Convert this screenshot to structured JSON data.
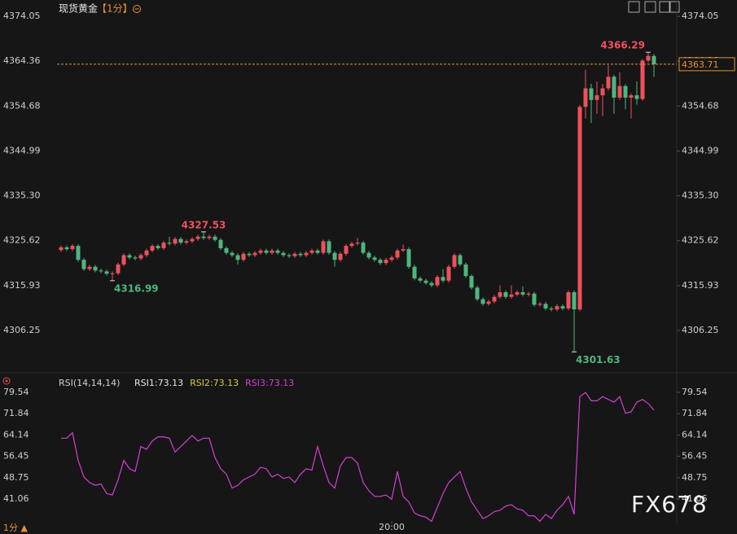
{
  "chart_data": [
    {
      "type": "candlestick",
      "title": "现货黄金",
      "subtitle": "【1分】",
      "up_color": "#f0505c",
      "down_color": "#4fb57f",
      "last_color": "#e8913a",
      "ylim": [
        4297.64,
        4376.16
      ],
      "yticks": [
        4374.05,
        4364.36,
        4354.68,
        4344.99,
        {
          "value": 4335.3,
          "label": "4335.30"
        },
        4325.62,
        4315.93,
        4306.25
      ],
      "grid": false,
      "open": [
        4323.6,
        4324.2,
        4323.8,
        4324.5,
        4321.5,
        4319.5,
        4320.0,
        4319.2,
        4319.0,
        4318.5,
        4318.6,
        4320.5,
        4322.5,
        4322.0,
        4321.8,
        4322.5,
        4323.5,
        4324.5,
        4324.0,
        4325.2,
        4325.0,
        4326.0,
        4325.2,
        4325.5,
        4326.0,
        4326.5,
        4326.2,
        4326.5,
        4325.8,
        4324.0,
        4323.0,
        4322.5,
        4321.5,
        4322.8,
        4322.5,
        4323.0,
        4323.5,
        4323.0,
        4323.5,
        4323.0,
        4322.5,
        4322.3,
        4322.8,
        4322.5,
        4323.0,
        4323.5,
        4323.0,
        4325.5,
        4323.0,
        4321.5,
        4322.8,
        4324.5,
        4325.0,
        4325.2,
        4323.0,
        4322.0,
        4321.5,
        4320.8,
        4321.5,
        4322.0,
        4323.5,
        4323.8,
        4320.0,
        4317.5,
        4317.0,
        4316.5,
        4316.0,
        4317.8,
        4317.0,
        4320.0,
        4322.5,
        4320.5,
        4318.0,
        4315.5,
        4313.0,
        4312.0,
        4312.5,
        4313.5,
        4314.5,
        4313.5,
        4314.0,
        4314.5,
        4314.0,
        4314.2,
        4311.8,
        4312.0,
        4311.0,
        4310.8,
        4311.5,
        4311.0,
        4314.5,
        4310.8,
        4354.5,
        4358.5,
        4356.0,
        4357.0,
        4358.5,
        4361.0,
        4356.5,
        4359.0,
        4356.5,
        4357.0,
        4356.2,
        4364.5,
        4365.5
      ],
      "high": [
        4324.6,
        4324.6,
        4324.9,
        4324.9,
        4321.9,
        4320.4,
        4320.4,
        4319.6,
        4319.4,
        4319.0,
        4320.9,
        4322.9,
        4322.9,
        4322.4,
        4322.9,
        4323.9,
        4324.9,
        4324.9,
        4325.6,
        4326.5,
        4326.4,
        4326.4,
        4325.9,
        4326.4,
        4326.9,
        4327.53,
        4326.9,
        4326.9,
        4326.2,
        4324.4,
        4323.4,
        4322.9,
        4323.2,
        4323.2,
        4323.4,
        4323.9,
        4323.9,
        4323.9,
        4323.9,
        4323.4,
        4322.9,
        4323.2,
        4323.2,
        4323.4,
        4323.9,
        4323.9,
        4325.9,
        4325.9,
        4323.4,
        4323.2,
        4324.9,
        4325.4,
        4326.2,
        4325.6,
        4323.4,
        4322.4,
        4321.9,
        4321.9,
        4322.4,
        4323.9,
        4324.8,
        4324.2,
        4320.4,
        4317.9,
        4317.4,
        4316.9,
        4318.2,
        4319.5,
        4320.4,
        4322.9,
        4322.9,
        4320.9,
        4318.4,
        4315.9,
        4313.4,
        4312.9,
        4313.9,
        4316.0,
        4314.9,
        4316.0,
        4314.9,
        4315.8,
        4314.6,
        4314.6,
        4312.4,
        4312.4,
        4311.4,
        4311.9,
        4311.9,
        4314.9,
        4314.9,
        4354.9,
        4362.5,
        4359.5,
        4360.0,
        4359.5,
        4363.5,
        4361.4,
        4362.0,
        4359.4,
        4357.4,
        4360.0,
        4364.9,
        4366.29,
        4365.9
      ],
      "low": [
        4323.2,
        4323.4,
        4323.4,
        4321.1,
        4319.1,
        4319.1,
        4318.8,
        4318.6,
        4318.1,
        4316.99,
        4318.2,
        4320.1,
        4321.6,
        4321.4,
        4321.4,
        4322.1,
        4323.1,
        4323.6,
        4323.6,
        4324.6,
        4324.6,
        4324.8,
        4324.8,
        4325.1,
        4325.6,
        4325.8,
        4325.8,
        4325.4,
        4323.6,
        4322.6,
        4322.1,
        4320.5,
        4321.1,
        4322.1,
        4322.1,
        4322.6,
        4322.6,
        4322.6,
        4322.6,
        4322.1,
        4321.9,
        4321.9,
        4322.1,
        4322.1,
        4322.6,
        4322.6,
        4322.6,
        4322.6,
        4320.0,
        4321.1,
        4322.4,
        4324.1,
        4324.6,
        4322.6,
        4321.6,
        4321.1,
        4320.4,
        4320.4,
        4321.1,
        4321.6,
        4323.1,
        4319.6,
        4317.1,
        4316.6,
        4316.1,
        4315.6,
        4315.6,
        4316.6,
        4316.6,
        4319.6,
        4320.1,
        4317.6,
        4315.1,
        4312.6,
        4311.6,
        4311.6,
        4312.1,
        4313.1,
        4313.1,
        4313.1,
        4313.6,
        4313.6,
        4313.6,
        4311.4,
        4311.4,
        4310.6,
        4310.4,
        4310.4,
        4310.6,
        4310.6,
        4301.63,
        4310.4,
        4352.0,
        4351.0,
        4353.0,
        4352.5,
        4358.0,
        4353.0,
        4356.0,
        4354.0,
        4352.0,
        4355.0,
        4355.8,
        4364.1,
        4361.0
      ],
      "close": [
        4324.2,
        4323.8,
        4324.5,
        4321.5,
        4319.5,
        4320.0,
        4319.2,
        4319.0,
        4318.5,
        4318.6,
        4320.5,
        4322.5,
        4322.0,
        4321.8,
        4322.5,
        4323.5,
        4324.5,
        4324.0,
        4325.2,
        4325.0,
        4326.0,
        4325.2,
        4325.5,
        4326.0,
        4326.5,
        4326.2,
        4326.5,
        4325.8,
        4324.0,
        4323.0,
        4322.5,
        4321.5,
        4322.8,
        4322.5,
        4323.0,
        4323.5,
        4323.0,
        4323.5,
        4323.0,
        4322.5,
        4322.3,
        4322.8,
        4322.5,
        4323.0,
        4323.5,
        4323.0,
        4325.5,
        4323.0,
        4321.5,
        4322.8,
        4324.5,
        4325.0,
        4325.2,
        4323.0,
        4322.0,
        4321.5,
        4320.8,
        4321.5,
        4322.0,
        4323.5,
        4323.8,
        4320.0,
        4317.5,
        4317.0,
        4316.5,
        4316.0,
        4317.8,
        4317.0,
        4320.0,
        4322.5,
        4320.5,
        4318.0,
        4315.5,
        4313.0,
        4312.0,
        4312.5,
        4313.5,
        4314.5,
        4313.5,
        4314.0,
        4314.5,
        4314.0,
        4314.2,
        4311.8,
        4312.0,
        4311.0,
        4310.8,
        4311.5,
        4311.0,
        4314.5,
        4310.8,
        4354.5,
        4358.5,
        4356.0,
        4357.0,
        4358.5,
        4361.0,
        4356.5,
        4359.0,
        4356.5,
        4357.0,
        4356.2,
        4364.5,
        4365.5,
        4363.71
      ]
    },
    {
      "type": "line",
      "title": "RSI(14,14,14)",
      "readouts": [
        {
          "text": "RSI1:73.13",
          "color": "#e6e6e6"
        },
        {
          "text": "RSI2:73.13",
          "color": "#d8cc3c"
        },
        {
          "text": "RSI3:73.13",
          "color": "#d43fd4"
        }
      ],
      "color": "#d43fd4",
      "ylim": [
        31.66,
        85.42
      ],
      "yticks": [
        79.54,
        71.84,
        64.14,
        56.45,
        48.75,
        41.06
      ],
      "xticks": [
        {
          "value": 58,
          "label": "20:00"
        }
      ],
      "grid": false,
      "values": [
        63,
        63,
        65,
        55,
        49,
        47,
        46,
        46.5,
        43,
        42.5,
        48,
        55,
        52,
        51,
        60,
        59,
        62,
        63.5,
        63.5,
        63,
        58,
        60,
        62,
        64,
        62,
        63,
        63,
        56,
        52,
        50,
        45,
        46,
        48,
        49,
        50,
        52.5,
        52,
        49,
        50,
        48.5,
        49,
        47,
        50,
        52,
        51.5,
        60,
        53,
        47,
        45,
        53,
        56,
        56,
        54,
        47,
        44,
        42,
        42,
        42.5,
        41,
        51,
        42,
        40,
        36,
        35,
        34.5,
        33,
        38,
        43,
        47,
        49,
        51,
        45,
        40,
        37,
        34,
        35,
        36.5,
        37,
        38.5,
        39,
        37.5,
        37,
        35,
        35,
        33,
        35.5,
        34,
        37,
        39,
        42,
        35.5,
        78,
        79.5,
        76.5,
        76.5,
        78,
        77,
        76,
        78,
        72,
        72.5,
        76,
        77,
        75.5,
        73.13
      ]
    }
  ],
  "timeframe": "1分 ▲",
  "watermark": "FX678"
}
